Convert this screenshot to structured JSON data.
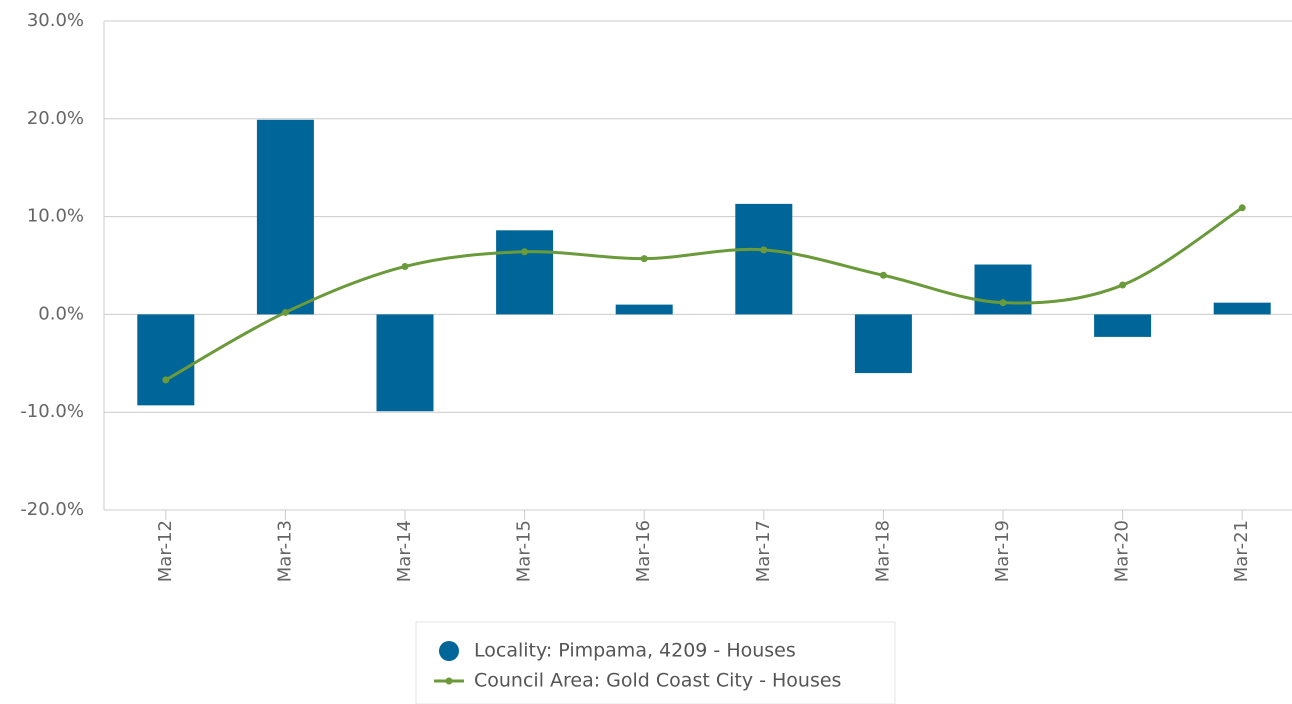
{
  "chart_data": {
    "type": "bar-line",
    "categories": [
      "Mar-12",
      "Mar-13",
      "Mar-14",
      "Mar-15",
      "Mar-16",
      "Mar-17",
      "Mar-18",
      "Mar-19",
      "Mar-20",
      "Mar-21"
    ],
    "series": [
      {
        "name": "Locality: Pimpama, 4209 - Houses",
        "type": "bar",
        "color": "#006699",
        "values": [
          -9.3,
          19.9,
          -9.9,
          8.6,
          1.0,
          11.3,
          -6.0,
          5.1,
          -2.3,
          1.2
        ]
      },
      {
        "name": "Council Area: Gold Coast City - Houses",
        "type": "line",
        "color": "#6a9a3a",
        "values": [
          -6.7,
          0.2,
          4.9,
          6.4,
          5.7,
          6.6,
          4.0,
          1.2,
          3.0,
          10.9
        ]
      }
    ],
    "ylim": [
      -20,
      30
    ],
    "yticks": [
      {
        "value": -20,
        "label": "-20.0%"
      },
      {
        "value": -10,
        "label": "-10.0%"
      },
      {
        "value": 0,
        "label": "0.0%"
      },
      {
        "value": 10,
        "label": "10.0%"
      },
      {
        "value": 20,
        "label": "20.0%"
      },
      {
        "value": 30,
        "label": "30.0%"
      }
    ],
    "grid": true,
    "legend": "bottom"
  }
}
